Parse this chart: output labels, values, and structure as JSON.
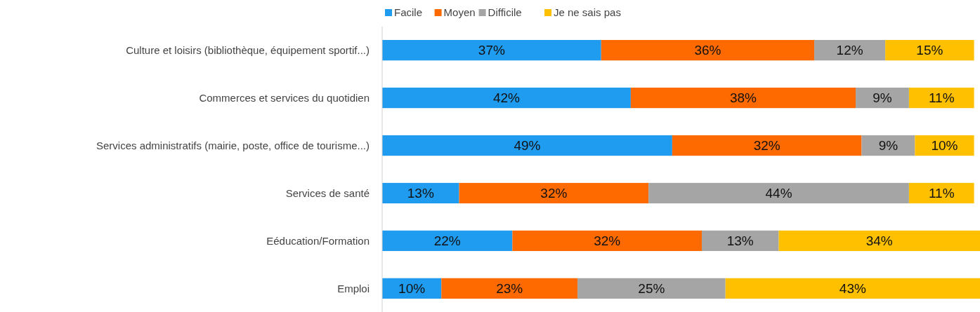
{
  "chart_data": {
    "type": "bar",
    "orientation": "horizontal",
    "stacked": true,
    "legend": "top",
    "categories": [
      "Culture et loisirs (bibliothèque, équipement sportif...)",
      "Commerces et services du quotidien",
      "Services administratifs (mairie, poste, office de tourisme...)",
      "Services de santé",
      "Eéducation/Formation",
      "Emploi"
    ],
    "series": [
      {
        "name": "Facile",
        "color": "#1f9bef",
        "values": [
          37,
          42,
          49,
          13,
          22,
          10
        ],
        "value_labels": [
          "37%",
          "42%",
          "49%",
          "13%",
          "22%",
          "10%"
        ]
      },
      {
        "name": "Moyen",
        "color": "#ff6a00",
        "values": [
          36,
          38,
          32,
          32,
          32,
          23
        ],
        "value_labels": [
          "36%",
          "38%",
          "32%",
          "32%",
          "32%",
          "23%"
        ]
      },
      {
        "name": "Difficile",
        "color": "#a5a5a5",
        "values": [
          12,
          9,
          9,
          44,
          13,
          25
        ],
        "value_labels": [
          "12%",
          "9%",
          "9%",
          "44%",
          "13%",
          "25%"
        ]
      },
      {
        "name": "Je ne sais pas",
        "color": "#ffc000",
        "values": [
          15,
          11,
          10,
          11,
          34,
          43
        ],
        "value_labels": [
          "15%",
          "11%",
          "10%",
          "11%",
          "34%",
          "43%"
        ]
      }
    ]
  }
}
